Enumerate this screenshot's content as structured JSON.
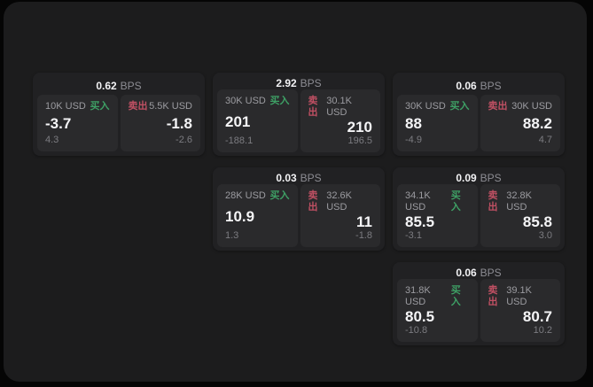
{
  "labels": {
    "buy_tag": "买入",
    "sell_tag": "卖出",
    "bps_unit": "BPS"
  },
  "colors": {
    "page_bg": "#050505",
    "panel_bg": "#1c1c1d",
    "card_bg": "#212123",
    "quote_panel_bg": "#2a2a2c",
    "buy_accent": "#3ea065",
    "sell_accent": "#c05063",
    "primary_text": "#f5f5f7",
    "secondary_text": "#9c9ca1"
  },
  "quotes": [
    {
      "bps": "0.62",
      "buy": {
        "amount": "10K USD",
        "price": "-3.7",
        "delta": "4.3"
      },
      "sell": {
        "amount": "5.5K USD",
        "price": "-1.8",
        "delta": "-2.6"
      }
    },
    {
      "bps": "2.92",
      "buy": {
        "amount": "30K USD",
        "price": "201",
        "delta": "-188.1"
      },
      "sell": {
        "amount": "30.1K USD",
        "price": "210",
        "delta": "196.5"
      }
    },
    {
      "bps": "0.06",
      "buy": {
        "amount": "30K USD",
        "price": "88",
        "delta": "-4.9"
      },
      "sell": {
        "amount": "30K USD",
        "price": "88.2",
        "delta": "4.7"
      }
    },
    {
      "bps": "0.03",
      "buy": {
        "amount": "28K USD",
        "price": "10.9",
        "delta": "1.3"
      },
      "sell": {
        "amount": "32.6K USD",
        "price": "11",
        "delta": "-1.8"
      }
    },
    {
      "bps": "0.09",
      "buy": {
        "amount": "34.1K USD",
        "price": "85.5",
        "delta": "-3.1"
      },
      "sell": {
        "amount": "32.8K USD",
        "price": "85.8",
        "delta": "3.0"
      }
    },
    {
      "bps": "0.06",
      "buy": {
        "amount": "31.8K USD",
        "price": "80.5",
        "delta": "-10.8"
      },
      "sell": {
        "amount": "39.1K USD",
        "price": "80.7",
        "delta": "10.2"
      }
    }
  ]
}
